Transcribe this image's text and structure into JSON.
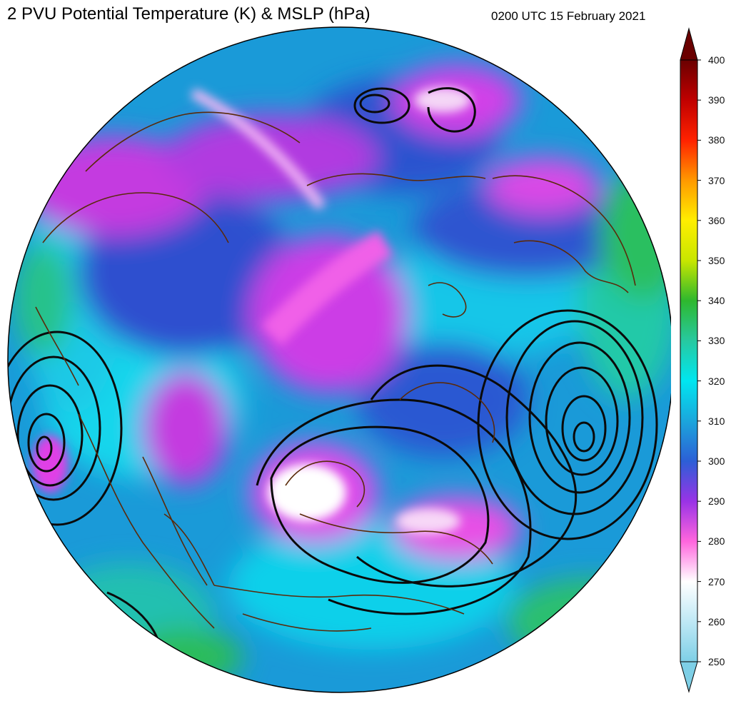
{
  "header": {
    "title": "2 PVU Potential Temperature (K) & MSLP (hPa)",
    "timestamp": "0200 UTC 15 February 2021"
  },
  "colorbar": {
    "labels": [
      "400",
      "390",
      "380",
      "370",
      "360",
      "350",
      "340",
      "330",
      "320",
      "310",
      "300",
      "290",
      "280",
      "270",
      "260",
      "250"
    ],
    "min": 250,
    "max": 400,
    "stops": [
      {
        "value": 250,
        "color": "#7ecfe6"
      },
      {
        "value": 260,
        "color": "#bfe8f5"
      },
      {
        "value": 270,
        "color": "#ffffff"
      },
      {
        "value": 280,
        "color": "#ff66dd"
      },
      {
        "value": 290,
        "color": "#9933e6"
      },
      {
        "value": 300,
        "color": "#2c5fd6"
      },
      {
        "value": 310,
        "color": "#1ba6dc"
      },
      {
        "value": 320,
        "color": "#00e6f0"
      },
      {
        "value": 330,
        "color": "#27c9a0"
      },
      {
        "value": 340,
        "color": "#2eb82e"
      },
      {
        "value": 350,
        "color": "#c8e600"
      },
      {
        "value": 360,
        "color": "#ffee00"
      },
      {
        "value": 370,
        "color": "#ff9900"
      },
      {
        "value": 380,
        "color": "#ff2200"
      },
      {
        "value": 390,
        "color": "#c00000"
      },
      {
        "value": 400,
        "color": "#6a0000"
      }
    ]
  },
  "map": {
    "projection": "orthographic",
    "field": "2 PVU potential temperature",
    "contours": "MSLP",
    "coastline_color": "#5a2a0a",
    "contour_color": "#0a0a0a"
  }
}
